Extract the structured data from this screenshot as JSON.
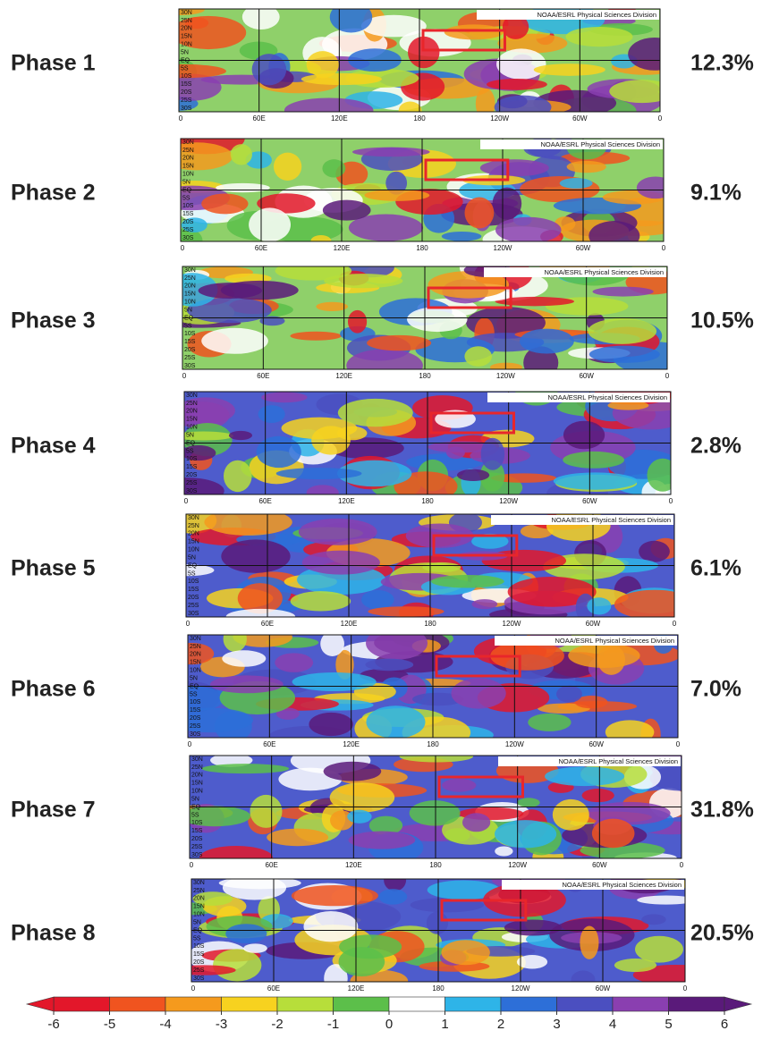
{
  "panels": [
    {
      "label": "Phase 1",
      "percent": "12.3%"
    },
    {
      "label": "Phase 2",
      "percent": "9.1%"
    },
    {
      "label": "Phase 3",
      "percent": "10.5%"
    },
    {
      "label": "Phase 4",
      "percent": "2.8%"
    },
    {
      "label": "Phase 5",
      "percent": "6.1%"
    },
    {
      "label": "Phase 6",
      "percent": "7.0%"
    },
    {
      "label": "Phase 7",
      "percent": "31.8%"
    },
    {
      "label": "Phase 8",
      "percent": "20.5%"
    }
  ],
  "credit": "NOAA/ESRL Physical Sciences Division",
  "lat_labels": [
    "30N",
    "25N",
    "20N",
    "15N",
    "10N",
    "5N",
    "EQ",
    "5S",
    "10S",
    "15S",
    "20S",
    "25S",
    "30S"
  ],
  "lon_labels": [
    "0",
    "60E",
    "120E",
    "180",
    "120W",
    "60W",
    "0"
  ],
  "colorbar": {
    "ticks": [
      -6,
      -5,
      -4,
      -3,
      -2,
      -1,
      0,
      1,
      2,
      3,
      4,
      5,
      6
    ],
    "colors": [
      "#e3172a",
      "#f0541f",
      "#f59a1d",
      "#f7d21f",
      "#b7de3a",
      "#5cbf4a",
      "#ffffff",
      "#2eb4e8",
      "#2d6fd8",
      "#4b4fc0",
      "#8a3fb0",
      "#5a1a7a"
    ]
  }
}
